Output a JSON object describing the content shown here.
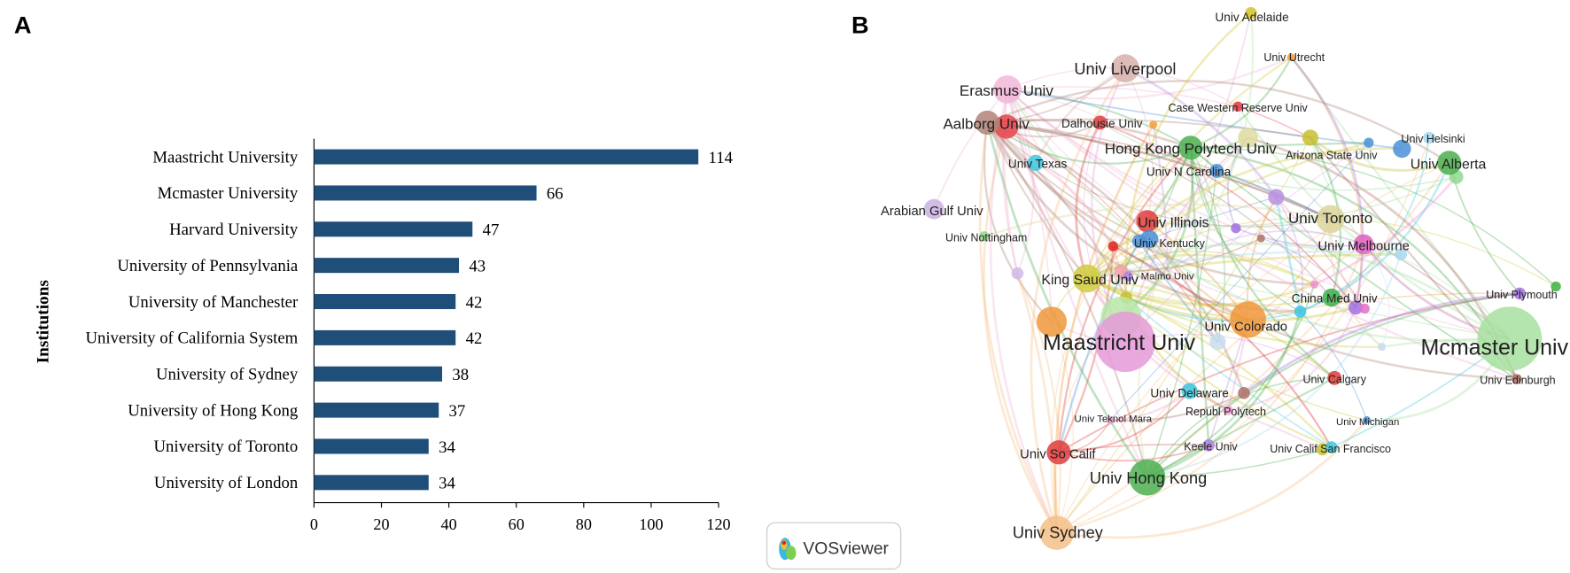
{
  "panels": {
    "a_label": "A",
    "b_label": "B"
  },
  "chart_data": [
    {
      "type": "bar",
      "orientation": "horizontal",
      "title": "",
      "ylabel": "Institutions",
      "xlabel": "",
      "categories": [
        "Maastricht University",
        "Mcmaster University",
        "Harvard University",
        "University of Pennsylvania",
        "University of Manchester",
        "University of California System",
        "University of Sydney",
        "University of Hong Kong",
        "University of Toronto",
        "University of London"
      ],
      "values": [
        114,
        66,
        47,
        43,
        42,
        42,
        38,
        37,
        34,
        34
      ],
      "xlim": [
        0,
        120
      ],
      "xticks": [
        "0",
        "20",
        "40",
        "60",
        "80",
        "100",
        "120"
      ],
      "bar_color": "#1f4e79",
      "grid": false
    },
    {
      "type": "network",
      "title": "",
      "nodes": [
        {
          "label": "Univ Adelaide",
          "color": "#d4c22a"
        },
        {
          "label": "Univ Utrecht",
          "color": "#f39c3a"
        },
        {
          "label": "Univ Liverpool",
          "color": "#d6b0aa"
        },
        {
          "label": "Erasmus Univ",
          "color": "#f2b6d8"
        },
        {
          "label": "Case Western Reserve Univ",
          "color": "#e8323c"
        },
        {
          "label": "Aalborg Univ",
          "color": "#b08478"
        },
        {
          "label": "Dalhousie Univ",
          "color": "#e03c3c"
        },
        {
          "label": "Hong Kong Polytech Univ",
          "color": "#4caf50"
        },
        {
          "label": "Arizona State Univ",
          "color": "#4a90d9"
        },
        {
          "label": "Univ Helsinki",
          "color": "#4a90d9"
        },
        {
          "label": "Univ Alberta",
          "color": "#4cae4c"
        },
        {
          "label": "Univ Texas",
          "color": "#3cc8e0"
        },
        {
          "label": "Univ N Carolina",
          "color": "#4a90d9"
        },
        {
          "label": "Arabian Gulf Univ",
          "color": "#c8b0e0"
        },
        {
          "label": "Univ Illinois",
          "color": "#e03c3c"
        },
        {
          "label": "Univ Toronto",
          "color": "#dcd59a"
        },
        {
          "label": "Univ Nottingham",
          "color": "#8ad88a"
        },
        {
          "label": "Univ Kentucky",
          "color": "#4a90d9"
        },
        {
          "label": "Univ Melbourne",
          "color": "#e060c0"
        },
        {
          "label": "King Saud Univ",
          "color": "#d0cc40"
        },
        {
          "label": "Malmo Univ",
          "color": "#b9a0e0"
        },
        {
          "label": "China Med Univ",
          "color": "#3fae4a"
        },
        {
          "label": "Univ Plymouth",
          "color": "#a070e0"
        },
        {
          "label": "Maastricht Univ",
          "color": "#e59ad8"
        },
        {
          "label": "Univ Colorado",
          "color": "#f0963a"
        },
        {
          "label": "Mcmaster Univ",
          "color": "#a8e0a0"
        },
        {
          "label": "Univ Calgary",
          "color": "#e03c3c"
        },
        {
          "label": "Univ Edinburgh",
          "color": "#b07068"
        },
        {
          "label": "Univ Delaware",
          "color": "#3cc8e0"
        },
        {
          "label": "Republ Polytech",
          "color": "#f2a6d0"
        },
        {
          "label": "Univ Teknol Mara",
          "color": "#f2a6d0"
        },
        {
          "label": "Univ Michigan",
          "color": "#4a90d9"
        },
        {
          "label": "Univ So Calif",
          "color": "#e03c3c"
        },
        {
          "label": "Keele Univ",
          "color": "#b080e0"
        },
        {
          "label": "Univ Calif San Francisco",
          "color": "#3cc8e0"
        },
        {
          "label": "Univ Hong Kong",
          "color": "#4caf50"
        },
        {
          "label": "Univ Sydney",
          "color": "#f5c088"
        }
      ]
    }
  ],
  "watermark": {
    "label": "VOSviewer"
  }
}
